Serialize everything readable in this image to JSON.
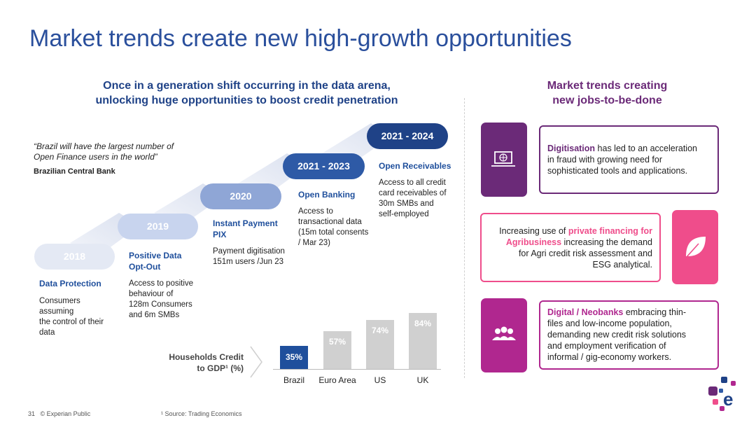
{
  "title": "Market trends create new high-growth opportunities",
  "left_subtitle_l1": "Once in a generation shift occurring in the data arena,",
  "left_subtitle_l2": "unlocking huge opportunities to boost credit penetration",
  "right_subtitle_l1": "Market trends creating",
  "right_subtitle_l2": "new jobs-to-be-done",
  "quote_l1": "“Brazil will have the largest number of",
  "quote_l2": "Open Finance users in the world”",
  "quote_source": "Brazilian Central Bank",
  "steps": [
    {
      "year": "2018",
      "head": "Data Protection",
      "desc": [
        "Consumers",
        "assuming",
        "the control of their",
        "data"
      ]
    },
    {
      "year": "2019",
      "head": [
        "Positive Data",
        "Opt-Out"
      ],
      "desc": [
        "Access to positive",
        "behaviour of",
        "128m Consumers",
        "and 6m SMBs"
      ]
    },
    {
      "year": "2020",
      "head": [
        "Instant Payment",
        "PIX"
      ],
      "desc": [
        "Payment digitisation",
        "151m users /Jun 23"
      ]
    },
    {
      "year": "2021 - 2023",
      "head": "Open Banking",
      "desc": [
        "Access to",
        "transactional data",
        "(15m total consents",
        "/ Mar 23)"
      ]
    },
    {
      "year": "2021 - 2024",
      "head": "Open Receivables",
      "desc": [
        "Access to all credit",
        "card receivables of",
        "30m SMBs and",
        "self-employed"
      ]
    }
  ],
  "households_label_l1": "Households Credit",
  "households_label_l2": "to GDP¹ (%)",
  "chart_data": {
    "type": "bar",
    "categories": [
      "Brazil",
      "Euro Area",
      "US",
      "UK"
    ],
    "values": [
      35,
      57,
      74,
      84
    ],
    "value_labels": [
      "35%",
      "57%",
      "74%",
      "84%"
    ],
    "colors": [
      "#1f4f9c",
      "#d0d0d0",
      "#d0d0d0",
      "#d0d0d0"
    ]
  },
  "trends": [
    {
      "icon": "laptop-icon",
      "color": "#6b2a78",
      "highlight": "Digitisation",
      "text_l1": " has led to an acceleration",
      "text_l2": "in fraud with growing need for",
      "text_l3": "sophisticated tools and applications."
    },
    {
      "icon": "leaf-icon",
      "color": "#ef4d8b",
      "pre": "Increasing use of ",
      "highlight": "private financing for",
      "highlight2": "Agribusiness",
      "text_l2": " increasing the demand",
      "text_l3": "for Agri credit risk assessment and",
      "text_l4": "ESG analytical."
    },
    {
      "icon": "people-icon",
      "color": "#b0278f",
      "highlight": "Digital / Neobanks",
      "text_l1": " embracing thin-",
      "text_l2": "files and low-income population,",
      "text_l3": "demanding new credit risk solutions",
      "text_l4": "and employment verification of",
      "text_l5": "informal / gig-economy workers."
    }
  ],
  "footer_page": "31",
  "footer_classification": "© Experian Public",
  "footer_source": "¹ Source: Trading Economics",
  "brand_colors": {
    "blue": "#2a4f9c",
    "purple": "#6b2a78",
    "pink": "#ef4d8b",
    "magenta": "#b0278f"
  }
}
